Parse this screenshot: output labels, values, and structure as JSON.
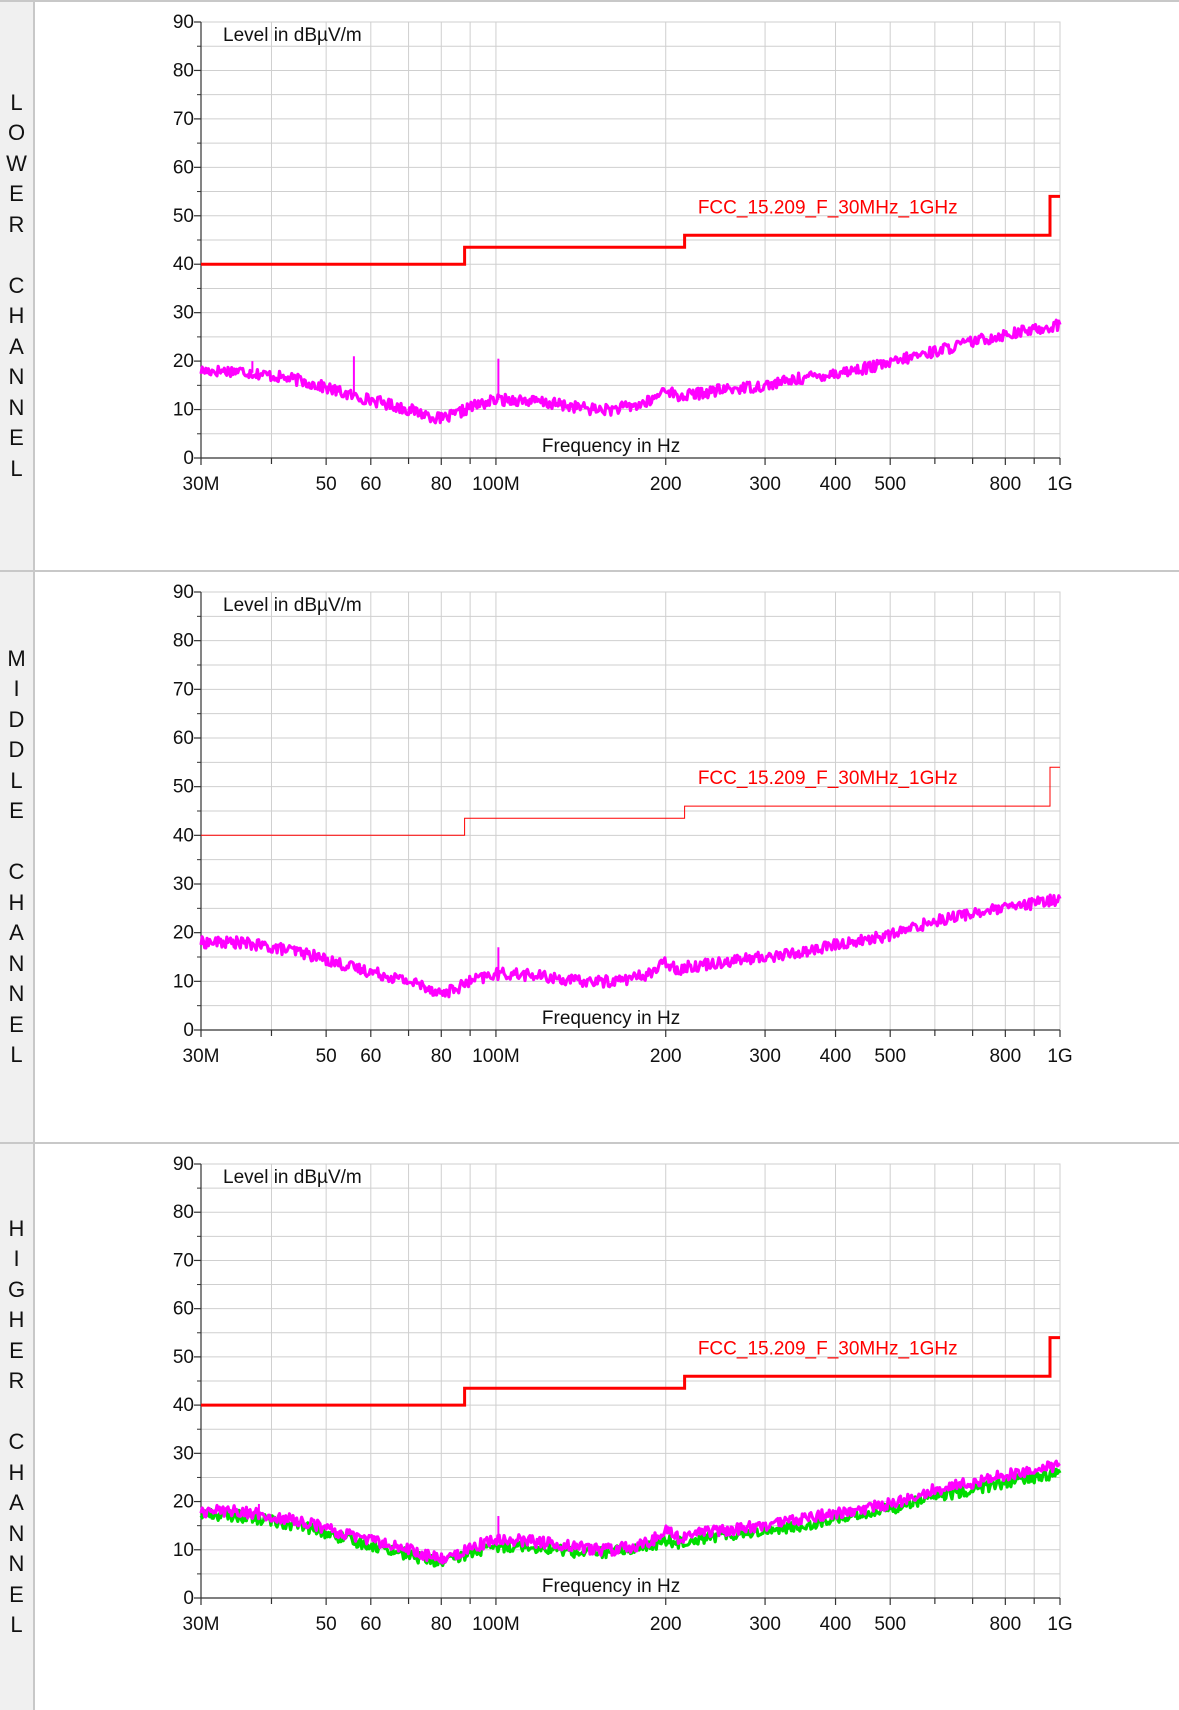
{
  "chart_data": [
    {
      "type": "line",
      "panel_label": "LOWER CHANNEL",
      "ylabel": "Level in dBµV/m",
      "xlabel": "Frequency in Hz",
      "x_scale": "log",
      "xlim": [
        30000000,
        1000000000
      ],
      "ylim": [
        0,
        90
      ],
      "yticks": [
        "0",
        "10",
        "20",
        "30",
        "40",
        "50",
        "60",
        "70",
        "80",
        "90"
      ],
      "xticks": [
        {
          "value": 30000000,
          "label": "30M"
        },
        {
          "value": 50000000,
          "label": "50"
        },
        {
          "value": 60000000,
          "label": "60"
        },
        {
          "value": 80000000,
          "label": "80"
        },
        {
          "value": 100000000,
          "label": "100M"
        },
        {
          "value": 200000000,
          "label": "200"
        },
        {
          "value": 300000000,
          "label": "300"
        },
        {
          "value": 400000000,
          "label": "400"
        },
        {
          "value": 500000000,
          "label": "500"
        },
        {
          "value": 800000000,
          "label": "800"
        },
        {
          "value": 1000000000,
          "label": "1G"
        }
      ],
      "grid": true,
      "limit_line": {
        "name": "FCC_15.209_F_30MHz_1GHz",
        "color": "#ff0000",
        "width": 3,
        "x": [
          30000000,
          88000000,
          88000000,
          216000000,
          216000000,
          960000000,
          960000000,
          1000000000
        ],
        "y": [
          40,
          40,
          43.5,
          43.5,
          46,
          46,
          54,
          54
        ]
      },
      "series": [
        {
          "color": "#ff00ff",
          "x": [
            30000000,
            35000000,
            40000000,
            45000000,
            50000000,
            55000000,
            60000000,
            65000000,
            70000000,
            75000000,
            80000000,
            85000000,
            90000000,
            100000000,
            110000000,
            120000000,
            130000000,
            140000000,
            150000000,
            160000000,
            170000000,
            180000000,
            190000000,
            200000000,
            210000000,
            220000000,
            250000000,
            300000000,
            350000000,
            400000000,
            450000000,
            500000000,
            550000000,
            600000000,
            700000000,
            800000000,
            900000000,
            1000000000
          ],
          "y": [
            18,
            18,
            17,
            16,
            14.5,
            13,
            12,
            11,
            10,
            9,
            8,
            9,
            10.5,
            12,
            12,
            11.5,
            11,
            10.5,
            10,
            10,
            10.5,
            11,
            12,
            14.5,
            12.5,
            13,
            14,
            15,
            16.5,
            17.5,
            18.5,
            19.5,
            21,
            22,
            24,
            25.5,
            26.5,
            27.5
          ]
        }
      ],
      "spikes": [
        {
          "x": 56000000,
          "y": 21
        },
        {
          "x": 101000000,
          "y": 20.5
        },
        {
          "x": 37000000,
          "y": 20
        }
      ]
    },
    {
      "type": "line",
      "panel_label": "MIDDLE CHANNEL",
      "ylabel": "Level in dBµV/m",
      "xlabel": "Frequency in Hz",
      "x_scale": "log",
      "xlim": [
        30000000,
        1000000000
      ],
      "ylim": [
        0,
        90
      ],
      "yticks": [
        "0",
        "10",
        "20",
        "30",
        "40",
        "50",
        "60",
        "70",
        "80",
        "90"
      ],
      "xticks": [
        {
          "value": 30000000,
          "label": "30M"
        },
        {
          "value": 50000000,
          "label": "50"
        },
        {
          "value": 60000000,
          "label": "60"
        },
        {
          "value": 80000000,
          "label": "80"
        },
        {
          "value": 100000000,
          "label": "100M"
        },
        {
          "value": 200000000,
          "label": "200"
        },
        {
          "value": 300000000,
          "label": "300"
        },
        {
          "value": 400000000,
          "label": "400"
        },
        {
          "value": 500000000,
          "label": "500"
        },
        {
          "value": 800000000,
          "label": "800"
        },
        {
          "value": 1000000000,
          "label": "1G"
        }
      ],
      "grid": true,
      "limit_line": {
        "name": "FCC_15.209_F_30MHz_1GHz",
        "color": "#ff0000",
        "width": 1,
        "x": [
          30000000,
          88000000,
          88000000,
          216000000,
          216000000,
          960000000,
          960000000,
          1000000000
        ],
        "y": [
          40,
          40,
          43.5,
          43.5,
          46,
          46,
          54,
          54
        ]
      },
      "series": [
        {
          "color": "#ff00ff",
          "x": [
            30000000,
            35000000,
            40000000,
            45000000,
            50000000,
            55000000,
            60000000,
            65000000,
            70000000,
            75000000,
            80000000,
            85000000,
            90000000,
            100000000,
            110000000,
            120000000,
            130000000,
            140000000,
            150000000,
            160000000,
            170000000,
            180000000,
            190000000,
            200000000,
            210000000,
            220000000,
            250000000,
            300000000,
            350000000,
            400000000,
            450000000,
            500000000,
            550000000,
            600000000,
            700000000,
            800000000,
            900000000,
            1000000000
          ],
          "y": [
            18,
            18,
            17,
            16,
            14.5,
            13,
            12,
            11,
            10,
            9,
            7.5,
            8.5,
            10,
            11.5,
            11.5,
            11,
            10.5,
            10,
            10,
            10,
            10.5,
            11,
            12,
            14,
            12.5,
            13,
            14,
            15,
            16,
            17.5,
            18.5,
            19.5,
            21,
            22.5,
            24,
            25,
            26,
            27
          ]
        }
      ],
      "spikes": [
        {
          "x": 101000000,
          "y": 17
        }
      ]
    },
    {
      "type": "line",
      "panel_label": "HIGHER CHANNEL",
      "ylabel": "Level in dBµV/m",
      "xlabel": "Frequency in Hz",
      "x_scale": "log",
      "xlim": [
        30000000,
        1000000000
      ],
      "ylim": [
        0,
        90
      ],
      "yticks": [
        "0",
        "10",
        "20",
        "30",
        "40",
        "50",
        "60",
        "70",
        "80",
        "90"
      ],
      "xticks": [
        {
          "value": 30000000,
          "label": "30M"
        },
        {
          "value": 50000000,
          "label": "50"
        },
        {
          "value": 60000000,
          "label": "60"
        },
        {
          "value": 80000000,
          "label": "80"
        },
        {
          "value": 100000000,
          "label": "100M"
        },
        {
          "value": 200000000,
          "label": "200"
        },
        {
          "value": 300000000,
          "label": "300"
        },
        {
          "value": 400000000,
          "label": "400"
        },
        {
          "value": 500000000,
          "label": "500"
        },
        {
          "value": 800000000,
          "label": "800"
        },
        {
          "value": 1000000000,
          "label": "1G"
        }
      ],
      "grid": true,
      "limit_line": {
        "name": "FCC_15.209_F_30MHz_1GHz",
        "color": "#ff0000",
        "width": 3,
        "x": [
          30000000,
          88000000,
          88000000,
          216000000,
          216000000,
          960000000,
          960000000,
          1000000000
        ],
        "y": [
          40,
          40,
          43.5,
          43.5,
          46,
          46,
          54,
          54
        ]
      },
      "series": [
        {
          "color": "#00dd00",
          "x": [
            30000000,
            35000000,
            40000000,
            45000000,
            50000000,
            55000000,
            60000000,
            65000000,
            70000000,
            75000000,
            80000000,
            85000000,
            90000000,
            100000000,
            110000000,
            120000000,
            130000000,
            140000000,
            150000000,
            160000000,
            170000000,
            180000000,
            190000000,
            200000000,
            210000000,
            220000000,
            250000000,
            300000000,
            350000000,
            400000000,
            450000000,
            500000000,
            550000000,
            600000000,
            700000000,
            800000000,
            900000000,
            1000000000
          ],
          "y": [
            17.5,
            17,
            16,
            15,
            13.5,
            12,
            11,
            10,
            9,
            8,
            7.5,
            8,
            9.5,
            10.5,
            11,
            10.5,
            10,
            9.5,
            9.5,
            9.5,
            10,
            10.5,
            11,
            12,
            11.5,
            12,
            13,
            14,
            15,
            16.5,
            17.5,
            18.5,
            20,
            21,
            22.5,
            24,
            25,
            26
          ]
        },
        {
          "color": "#ff00ff",
          "x": [
            30000000,
            35000000,
            40000000,
            45000000,
            50000000,
            55000000,
            60000000,
            65000000,
            70000000,
            75000000,
            80000000,
            85000000,
            90000000,
            100000000,
            110000000,
            120000000,
            130000000,
            140000000,
            150000000,
            160000000,
            170000000,
            180000000,
            190000000,
            200000000,
            210000000,
            220000000,
            250000000,
            300000000,
            350000000,
            400000000,
            450000000,
            500000000,
            550000000,
            600000000,
            700000000,
            800000000,
            900000000,
            1000000000
          ],
          "y": [
            18,
            18,
            17,
            16,
            14.5,
            13,
            12,
            11,
            10,
            9,
            8,
            9,
            10.5,
            12,
            12,
            11.5,
            11,
            10.5,
            10,
            10,
            10.5,
            11,
            12,
            14.5,
            12.5,
            13,
            14,
            15,
            16.5,
            17.5,
            18.5,
            19.5,
            21,
            22.5,
            24,
            25.5,
            26.5,
            27.5
          ]
        }
      ],
      "spikes": [
        {
          "x": 101000000,
          "y": 17
        },
        {
          "x": 38000000,
          "y": 19.5
        }
      ]
    }
  ]
}
